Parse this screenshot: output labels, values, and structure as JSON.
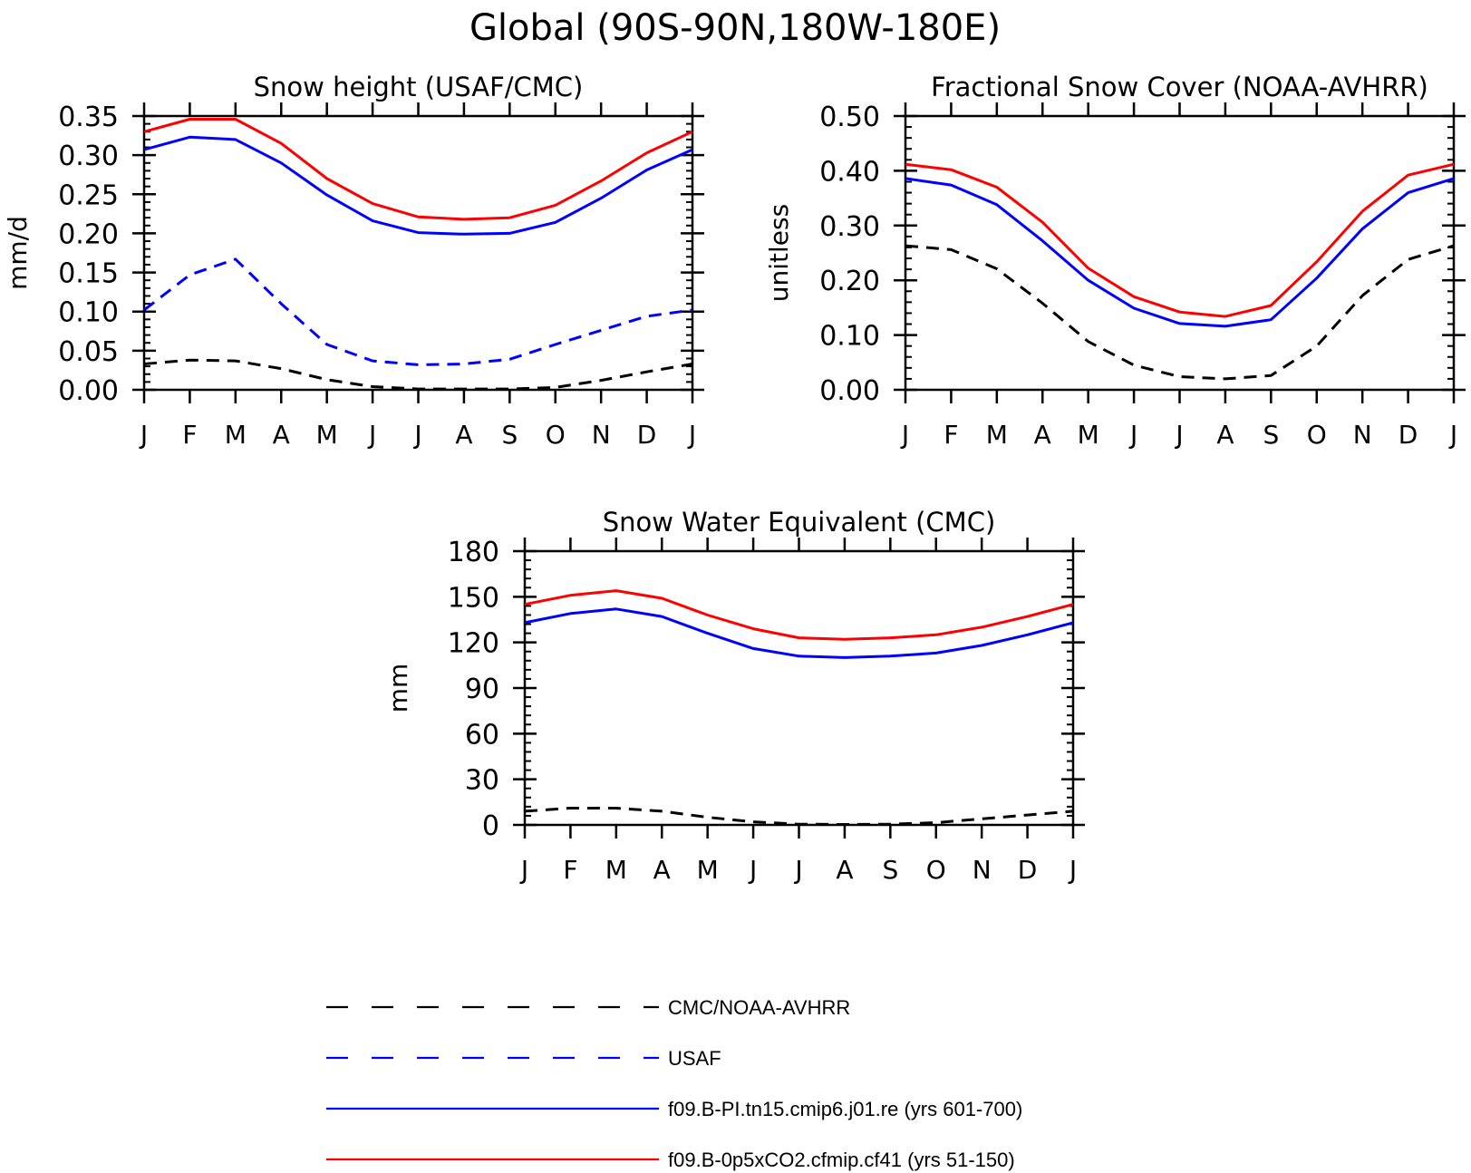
{
  "figure": {
    "title": "Global (90S-90N,180W-180E)",
    "month_labels": [
      "J",
      "F",
      "M",
      "A",
      "M",
      "J",
      "J",
      "A",
      "S",
      "O",
      "N",
      "D",
      "J"
    ]
  },
  "legend": {
    "items": [
      {
        "label": "CMC/NOAA-AVHRR",
        "color": "#000000",
        "dash": true
      },
      {
        "label": "USAF",
        "color": "#0000ff",
        "dash": true
      },
      {
        "label": "f09.B-PI.tn15.cmip6.j01.re (yrs 601-700)",
        "color": "#0000ff",
        "dash": false
      },
      {
        "label": "f09.B-0p5xCO2.cfmip.cf41 (yrs 51-150)",
        "color": "#ff0000",
        "dash": false
      }
    ]
  },
  "chart_data": [
    {
      "type": "line",
      "title": "Snow height (USAF/CMC)",
      "ylabel": "mm/d",
      "xlabel": "",
      "ylim": [
        0,
        0.35
      ],
      "yticks": [
        "0.00",
        "0.05",
        "0.10",
        "0.15",
        "0.20",
        "0.25",
        "0.30",
        "0.35"
      ],
      "categories": [
        "J",
        "F",
        "M",
        "A",
        "M",
        "J",
        "J",
        "A",
        "S",
        "O",
        "N",
        "D",
        "J"
      ],
      "series": [
        {
          "name": "CMC/NOAA-AVHRR",
          "color": "#000000",
          "dash": true,
          "values": [
            0.033,
            0.038,
            0.037,
            0.027,
            0.013,
            0.004,
            0.001,
            0.001,
            0.001,
            0.003,
            0.012,
            0.023,
            0.033
          ]
        },
        {
          "name": "USAF",
          "color": "#0000ff",
          "dash": true,
          "values": [
            0.102,
            0.147,
            0.167,
            0.11,
            0.058,
            0.037,
            0.032,
            0.033,
            0.039,
            0.058,
            0.076,
            0.094,
            0.102
          ]
        },
        {
          "name": "f09.B-PI.tn15.cmip6.j01.re (yrs 601-700)",
          "color": "#0000ff",
          "dash": false,
          "values": [
            0.307,
            0.323,
            0.32,
            0.29,
            0.249,
            0.216,
            0.201,
            0.199,
            0.2,
            0.214,
            0.245,
            0.281,
            0.307
          ]
        },
        {
          "name": "f09.B-0p5xCO2.cfmip.cf41 (yrs 51-150)",
          "color": "#ff0000",
          "dash": false,
          "values": [
            0.33,
            0.346,
            0.346,
            0.315,
            0.27,
            0.238,
            0.221,
            0.218,
            0.22,
            0.236,
            0.267,
            0.303,
            0.33
          ]
        }
      ]
    },
    {
      "type": "line",
      "title": "Fractional Snow Cover (NOAA-AVHRR)",
      "ylabel": "unitless",
      "xlabel": "",
      "ylim": [
        0,
        0.5
      ],
      "yticks": [
        "0.00",
        "0.10",
        "0.20",
        "0.30",
        "0.40",
        "0.50"
      ],
      "categories": [
        "J",
        "F",
        "M",
        "A",
        "M",
        "J",
        "J",
        "A",
        "S",
        "O",
        "N",
        "D",
        "J"
      ],
      "series": [
        {
          "name": "CMC/NOAA-AVHRR",
          "color": "#000000",
          "dash": true,
          "values": [
            0.263,
            0.256,
            0.221,
            0.158,
            0.088,
            0.045,
            0.024,
            0.02,
            0.026,
            0.08,
            0.172,
            0.238,
            0.263
          ]
        },
        {
          "name": "f09.B-PI.tn15.cmip6.j01.re (yrs 601-700)",
          "color": "#0000ff",
          "dash": false,
          "values": [
            0.386,
            0.374,
            0.338,
            0.272,
            0.2,
            0.149,
            0.121,
            0.116,
            0.128,
            0.204,
            0.294,
            0.36,
            0.386
          ]
        },
        {
          "name": "f09.B-0p5xCO2.cfmip.cf41 (yrs 51-150)",
          "color": "#ff0000",
          "dash": false,
          "values": [
            0.412,
            0.402,
            0.37,
            0.306,
            0.222,
            0.17,
            0.142,
            0.134,
            0.154,
            0.234,
            0.326,
            0.392,
            0.412
          ]
        }
      ]
    },
    {
      "type": "line",
      "title": "Snow Water Equivalent (CMC)",
      "ylabel": "mm",
      "xlabel": "",
      "ylim": [
        0,
        180
      ],
      "yticks": [
        "0",
        "30",
        "60",
        "90",
        "120",
        "150",
        "180"
      ],
      "categories": [
        "J",
        "F",
        "M",
        "A",
        "M",
        "J",
        "J",
        "A",
        "S",
        "O",
        "N",
        "D",
        "J"
      ],
      "series": [
        {
          "name": "CMC/NOAA-AVHRR",
          "color": "#000000",
          "dash": true,
          "values": [
            9,
            11,
            11,
            9,
            5,
            2,
            0.5,
            0.3,
            0.5,
            1.5,
            4,
            6.5,
            9
          ]
        },
        {
          "name": "f09.B-PI.tn15.cmip6.j01.re (yrs 601-700)",
          "color": "#0000ff",
          "dash": false,
          "values": [
            133,
            139,
            142,
            137,
            126,
            116,
            111,
            110,
            111,
            113,
            118,
            125,
            133
          ]
        },
        {
          "name": "f09.B-0p5xCO2.cfmip.cf41 (yrs 51-150)",
          "color": "#ff0000",
          "dash": false,
          "values": [
            145,
            151,
            154,
            149,
            138,
            129,
            123,
            122,
            123,
            125,
            130,
            137,
            145
          ]
        }
      ]
    }
  ]
}
